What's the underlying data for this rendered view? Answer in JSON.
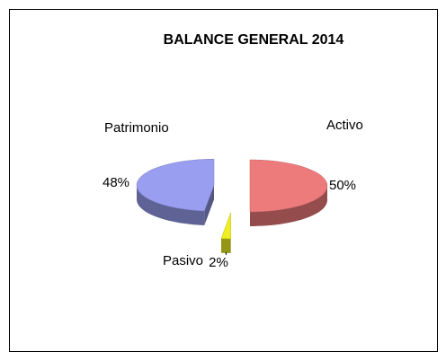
{
  "chart_data": {
    "type": "pie3d",
    "title": "BALANCE GENERAL 2014",
    "categories": [
      "Activo",
      "Pasivo",
      "Patrimonio"
    ],
    "values": [
      50,
      2,
      48
    ],
    "value_labels": [
      "50%",
      "2%",
      "48%"
    ],
    "colors": [
      "#ee7b7b",
      "#eeee22",
      "#9a9ef0"
    ]
  }
}
